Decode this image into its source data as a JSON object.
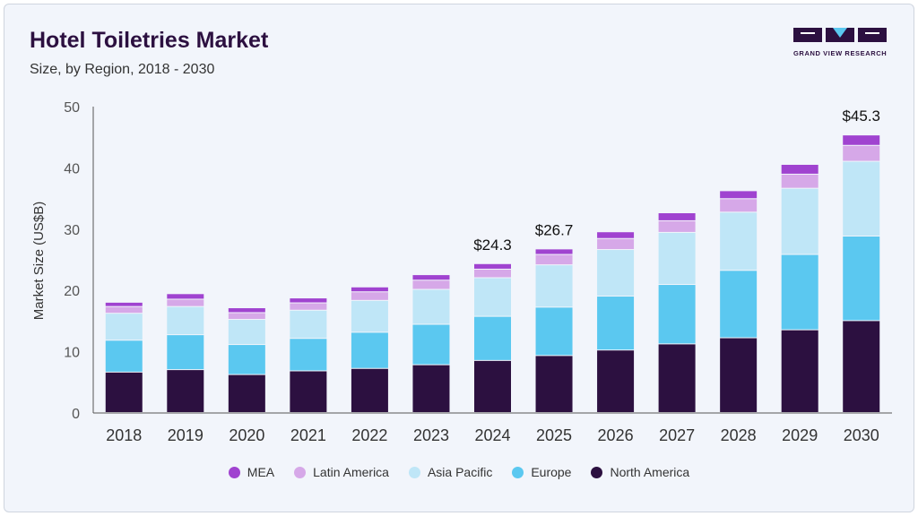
{
  "header": {
    "title": "Hotel Toiletries Market",
    "subtitle": "Size, by Region, 2018 - 2030"
  },
  "logo": {
    "text": "GRAND VIEW RESEARCH"
  },
  "chart_data": {
    "type": "bar",
    "stacked": true,
    "categories": [
      "2018",
      "2019",
      "2020",
      "2021",
      "2022",
      "2023",
      "2024",
      "2025",
      "2026",
      "2027",
      "2028",
      "2029",
      "2030"
    ],
    "ylabel": "Market Size (US$B)",
    "xlabel": "",
    "ylim": [
      0,
      50
    ],
    "yticks": [
      0,
      10,
      20,
      30,
      40,
      50
    ],
    "grid": false,
    "legend_position": "bottom",
    "series": [
      {
        "name": "North America",
        "color": "#2c1040",
        "values": [
          6.6,
          7.0,
          6.2,
          6.8,
          7.2,
          7.8,
          8.5,
          9.3,
          10.2,
          11.2,
          12.2,
          13.5,
          15.0
        ]
      },
      {
        "name": "Europe",
        "color": "#5bc8f0",
        "values": [
          5.2,
          5.7,
          4.9,
          5.3,
          5.9,
          6.6,
          7.2,
          7.9,
          8.8,
          9.7,
          11.0,
          12.3,
          13.8
        ]
      },
      {
        "name": "Asia Pacific",
        "color": "#bfe6f7",
        "values": [
          4.4,
          4.6,
          4.1,
          4.6,
          5.2,
          5.7,
          6.3,
          6.9,
          7.6,
          8.5,
          9.5,
          10.8,
          12.2
        ]
      },
      {
        "name": "Latin America",
        "color": "#d6a8e8",
        "values": [
          1.1,
          1.2,
          1.1,
          1.2,
          1.4,
          1.5,
          1.4,
          1.7,
          1.8,
          1.9,
          2.2,
          2.3,
          2.6
        ]
      },
      {
        "name": "MEA",
        "color": "#a043d0",
        "values": [
          0.7,
          0.9,
          0.8,
          0.8,
          0.8,
          0.9,
          0.9,
          0.9,
          1.1,
          1.3,
          1.3,
          1.6,
          1.7
        ]
      }
    ],
    "annotations": [
      {
        "category": "2024",
        "text": "$24.3",
        "value": 24.3
      },
      {
        "category": "2025",
        "text": "$26.7",
        "value": 26.7
      },
      {
        "category": "2030",
        "text": "$45.3",
        "value": 45.3
      }
    ],
    "legend_order": [
      "MEA",
      "Latin America",
      "Asia Pacific",
      "Europe",
      "North America"
    ]
  }
}
